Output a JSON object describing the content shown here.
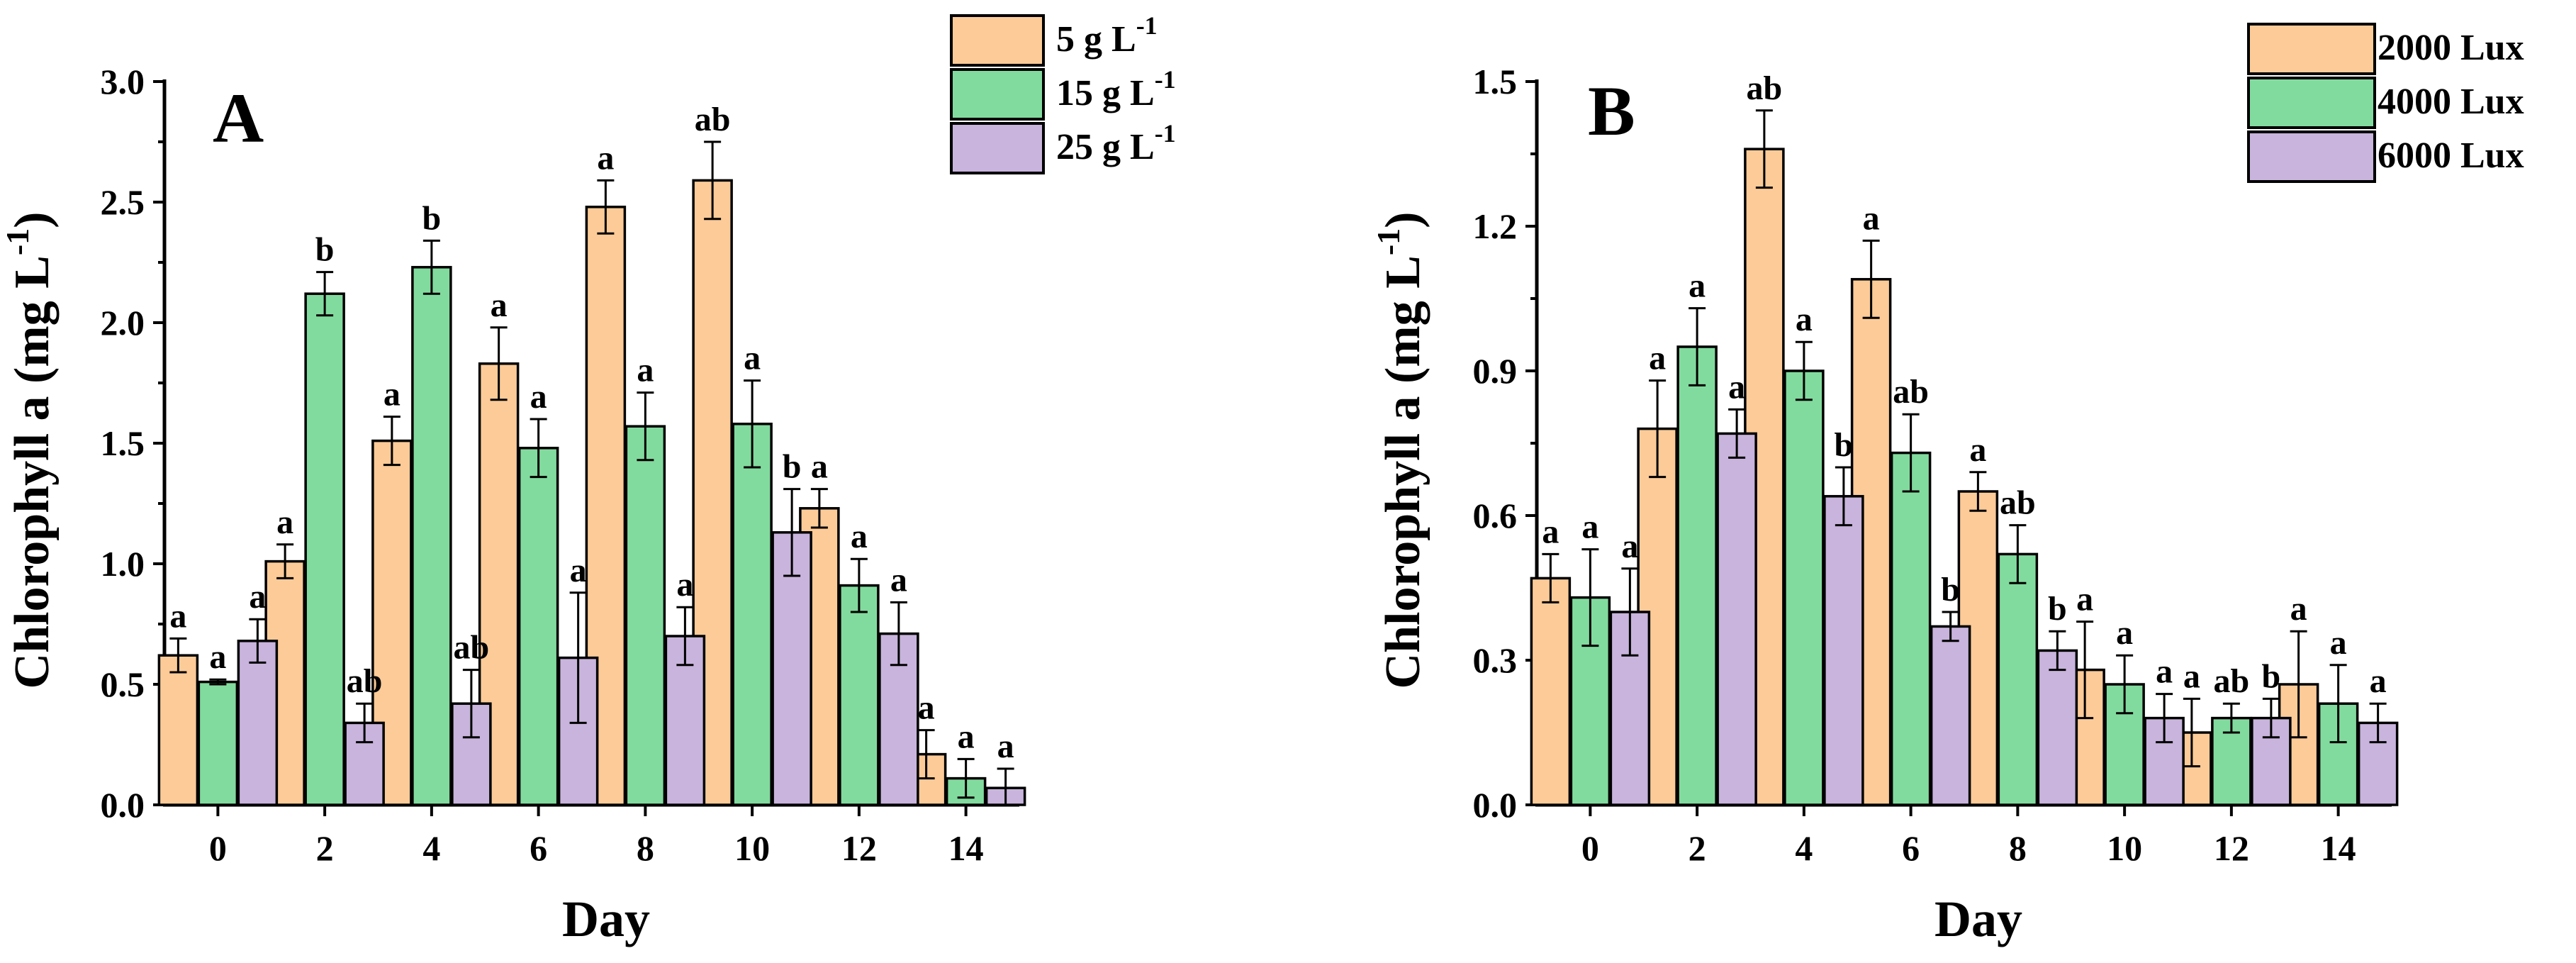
{
  "chart_data": [
    {
      "panel_label": "A",
      "type": "bar",
      "xlabel": "Day",
      "ylabel_main": "Chlorophyll a (mg L",
      "ylabel_sup": "-1",
      "ylabel_close": ")",
      "ylim": [
        0,
        3.0
      ],
      "yticks": [
        0.0,
        0.5,
        1.0,
        1.5,
        2.0,
        2.5,
        3.0
      ],
      "ytick_labels": [
        "0.0",
        "0.5",
        "1.0",
        "1.5",
        "2.0",
        "2.5",
        "3.0"
      ],
      "categories": [
        "0",
        "2",
        "4",
        "6",
        "8",
        "10",
        "12",
        "14"
      ],
      "legend_position": "top-right",
      "series": [
        {
          "name": "5 g L",
          "name_sup": "-1",
          "color": "#FCCB98",
          "values": [
            0.62,
            1.01,
            1.51,
            1.83,
            2.48,
            2.59,
            1.23,
            0.21
          ],
          "errors": [
            0.07,
            0.07,
            0.1,
            0.15,
            0.11,
            0.16,
            0.08,
            0.1
          ],
          "letters": [
            "a",
            "a",
            "a",
            "a",
            "a",
            "ab",
            "a",
            "a"
          ]
        },
        {
          "name": "15 g L",
          "name_sup": "-1",
          "color": "#82DB9E",
          "values": [
            0.51,
            2.12,
            2.23,
            1.48,
            1.57,
            1.58,
            0.91,
            0.11
          ],
          "errors": [
            0.01,
            0.09,
            0.11,
            0.12,
            0.14,
            0.18,
            0.11,
            0.08
          ],
          "letters": [
            "a",
            "b",
            "b",
            "a",
            "a",
            "a",
            "a",
            "a"
          ]
        },
        {
          "name": "25 g L",
          "name_sup": "-1",
          "color": "#C8B4DC",
          "values": [
            0.68,
            0.34,
            0.42,
            0.61,
            0.7,
            1.13,
            0.71,
            0.07
          ],
          "errors": [
            0.09,
            0.08,
            0.14,
            0.27,
            0.12,
            0.18,
            0.13,
            0.08
          ],
          "letters": [
            "a",
            "ab",
            "ab",
            "a",
            "a",
            "b",
            "a",
            "a"
          ]
        }
      ]
    },
    {
      "panel_label": "B",
      "type": "bar",
      "xlabel": "Day",
      "ylabel_main": "Chlorophyll a (mg L",
      "ylabel_sup": "-1",
      "ylabel_close": ")",
      "ylim": [
        0,
        1.5
      ],
      "yticks": [
        0.0,
        0.3,
        0.6,
        0.9,
        1.2,
        1.5
      ],
      "ytick_labels": [
        "0.0",
        "0.3",
        "0.6",
        "0.9",
        "1.2",
        "1.5"
      ],
      "categories": [
        "0",
        "2",
        "4",
        "6",
        "8",
        "10",
        "12",
        "14"
      ],
      "legend_position": "top-right",
      "series": [
        {
          "name": "2000 Lux",
          "name_sup": "",
          "color": "#FCCB98",
          "values": [
            0.47,
            0.78,
            1.36,
            1.09,
            0.65,
            0.28,
            0.15,
            0.25
          ],
          "errors": [
            0.05,
            0.1,
            0.08,
            0.08,
            0.04,
            0.1,
            0.07,
            0.11
          ],
          "letters": [
            "a",
            "a",
            "ab",
            "a",
            "a",
            "a",
            "a",
            "a"
          ]
        },
        {
          "name": "4000 Lux",
          "name_sup": "",
          "color": "#82DB9E",
          "values": [
            0.43,
            0.95,
            0.9,
            0.73,
            0.52,
            0.25,
            0.18,
            0.21
          ],
          "errors": [
            0.1,
            0.08,
            0.06,
            0.08,
            0.06,
            0.06,
            0.03,
            0.08
          ],
          "letters": [
            "a",
            "a",
            "a",
            "ab",
            "ab",
            "a",
            "ab",
            "a"
          ]
        },
        {
          "name": "6000 Lux",
          "name_sup": "",
          "color": "#C8B4DC",
          "values": [
            0.4,
            0.77,
            0.64,
            0.37,
            0.32,
            0.18,
            0.18,
            0.17
          ],
          "errors": [
            0.09,
            0.05,
            0.06,
            0.03,
            0.04,
            0.05,
            0.04,
            0.04
          ],
          "letters": [
            "a",
            "a",
            "b",
            "b",
            "b",
            "a",
            "b",
            "a"
          ]
        }
      ]
    }
  ]
}
